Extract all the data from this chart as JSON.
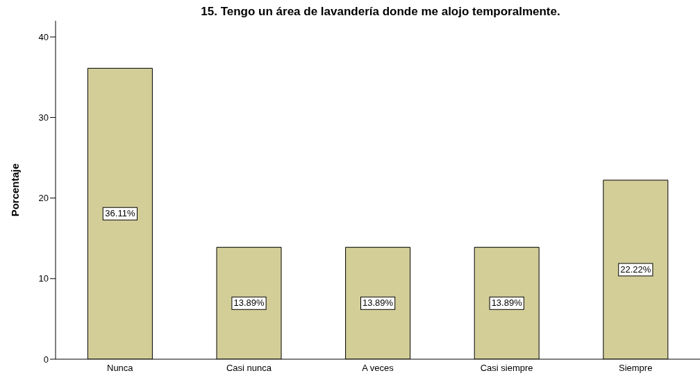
{
  "chart_data": {
    "type": "bar",
    "title": "15. Tengo un área de lavandería donde me alojo temporalmente.",
    "ylabel": "Porcentaje",
    "categories": [
      "Nunca",
      "Casi nunca",
      "A veces",
      "Casi siempre",
      "Siempre"
    ],
    "values": [
      36.11,
      13.89,
      13.89,
      13.89,
      22.22
    ],
    "value_labels": [
      "36.11%",
      "13.89%",
      "13.89%",
      "13.89%",
      "22.22%"
    ],
    "color": "#d3ce98",
    "ylim": [
      0,
      42
    ],
    "yticks": [
      0,
      10,
      20,
      30,
      40
    ],
    "grid": false
  }
}
